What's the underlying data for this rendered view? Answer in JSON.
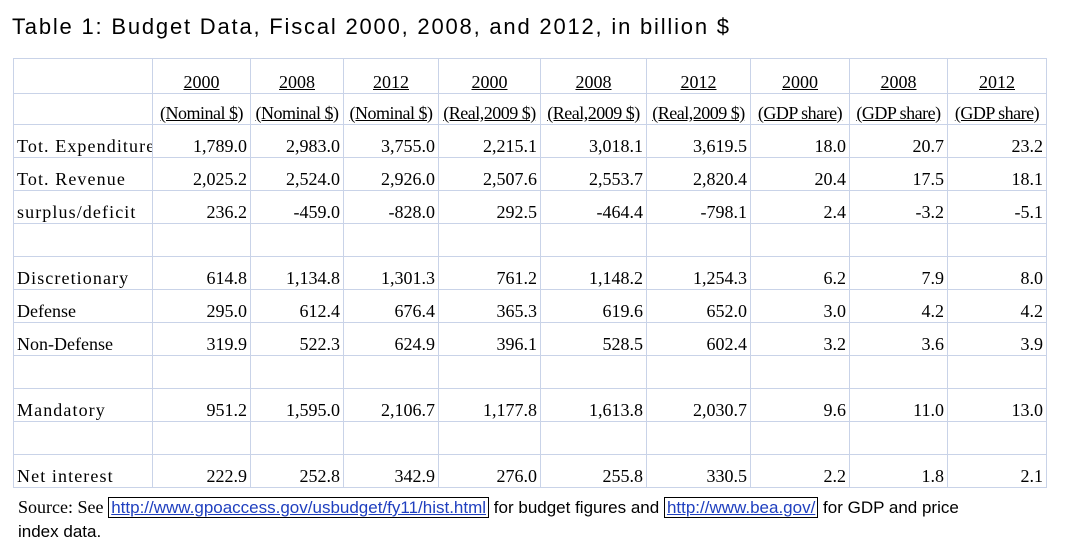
{
  "title": "Table 1: Budget Data, Fiscal 2000, 2008, and 2012, in billion $",
  "header": {
    "years": [
      "2000",
      "2008",
      "2012",
      "2000",
      "2008",
      "2012",
      "2000",
      "2008",
      "2012"
    ],
    "units": [
      "(Nominal $)",
      "(Nominal $)",
      "(Nominal $)",
      "(Real,2009 $)",
      "(Real,2009 $)",
      "(Real,2009 $)",
      "(GDP share)",
      "(GDP share)",
      "(GDP share)"
    ]
  },
  "rows": [
    {
      "label": "Tot. Expenditure",
      "values": [
        "1,789.0",
        "2,983.0",
        "3,755.0",
        "2,215.1",
        "3,018.1",
        "3,619.5",
        "18.0",
        "20.7",
        "23.2"
      ]
    },
    {
      "label": "Tot. Revenue",
      "values": [
        "2,025.2",
        "2,524.0",
        "2,926.0",
        "2,507.6",
        "2,553.7",
        "2,820.4",
        "20.4",
        "17.5",
        "18.1"
      ]
    },
    {
      "label": "surplus/deficit",
      "values": [
        "236.2",
        "-459.0",
        "-828.0",
        "292.5",
        "-464.4",
        "-798.1",
        "2.4",
        "-3.2",
        "-5.1"
      ]
    },
    {
      "label": "Discretionary",
      "values": [
        "614.8",
        "1,134.8",
        "1,301.3",
        "761.2",
        "1,148.2",
        "1,254.3",
        "6.2",
        "7.9",
        "8.0"
      ]
    },
    {
      "label": "Defense",
      "values": [
        "295.0",
        "612.4",
        "676.4",
        "365.3",
        "619.6",
        "652.0",
        "3.0",
        "4.2",
        "4.2"
      ]
    },
    {
      "label": "Non-Defense",
      "values": [
        "319.9",
        "522.3",
        "624.9",
        "396.1",
        "528.5",
        "602.4",
        "3.2",
        "3.6",
        "3.9"
      ]
    },
    {
      "label": "Mandatory",
      "values": [
        "951.2",
        "1,595.0",
        "2,106.7",
        "1,177.8",
        "1,613.8",
        "2,030.7",
        "9.6",
        "11.0",
        "13.0"
      ]
    },
    {
      "label": "Net interest",
      "values": [
        "222.9",
        "252.8",
        "342.9",
        "276.0",
        "255.8",
        "330.5",
        "2.2",
        "1.8",
        "2.1"
      ]
    }
  ],
  "source": {
    "lead": "Source: See",
    "link1": "http://www.gpoaccess.gov/usbudget/fy11/hist.html",
    "mid": "for budget figures and",
    "link2": "http://www.bea.gov/",
    "tail": "for GDP and price index data."
  }
}
